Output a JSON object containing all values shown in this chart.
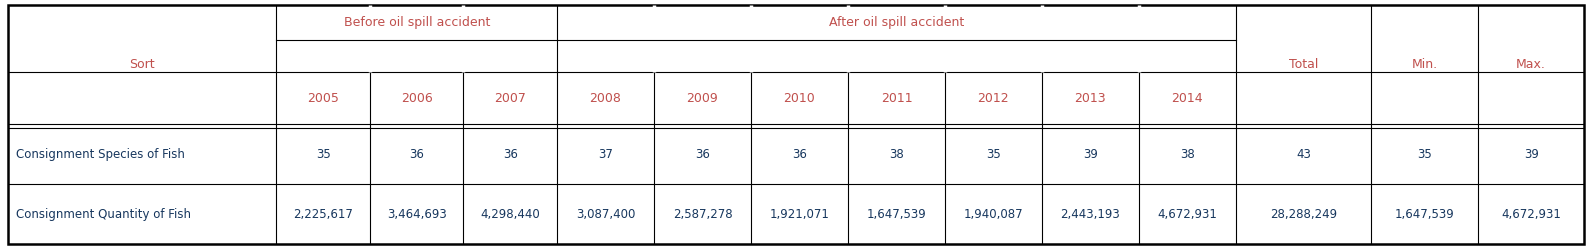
{
  "header_row1_labels": {
    "sort": "Sort",
    "before": "Before oil spill accident",
    "after": "After oil spill accident",
    "total": "Total",
    "min": "Min.",
    "max": "Max."
  },
  "years": [
    "2005",
    "2006",
    "2007",
    "2008",
    "2009",
    "2010",
    "2011",
    "2012",
    "2013",
    "2014"
  ],
  "data_rows": [
    [
      "Consignment Species of Fish",
      "35",
      "36",
      "36",
      "37",
      "36",
      "36",
      "38",
      "35",
      "39",
      "38",
      "43",
      "35",
      "39"
    ],
    [
      "Consignment Quantity of Fish",
      "2,225,617",
      "3,464,693",
      "4,298,440",
      "3,087,400",
      "2,587,278",
      "1,921,071",
      "1,647,539",
      "1,940,087",
      "2,443,193",
      "4,672,931",
      "28,288,249",
      "1,647,539",
      "4,672,931"
    ]
  ],
  "text_color_header": "#c0504d",
  "text_color_data_label": "#17375e",
  "text_color_data_num": "#17375e",
  "bg_color": "#ffffff",
  "border_color": "#000000",
  "figsize": [
    15.92,
    2.49
  ],
  "dpi": 100,
  "fs_header": 9,
  "fs_data": 8.5,
  "fs_years": 9
}
